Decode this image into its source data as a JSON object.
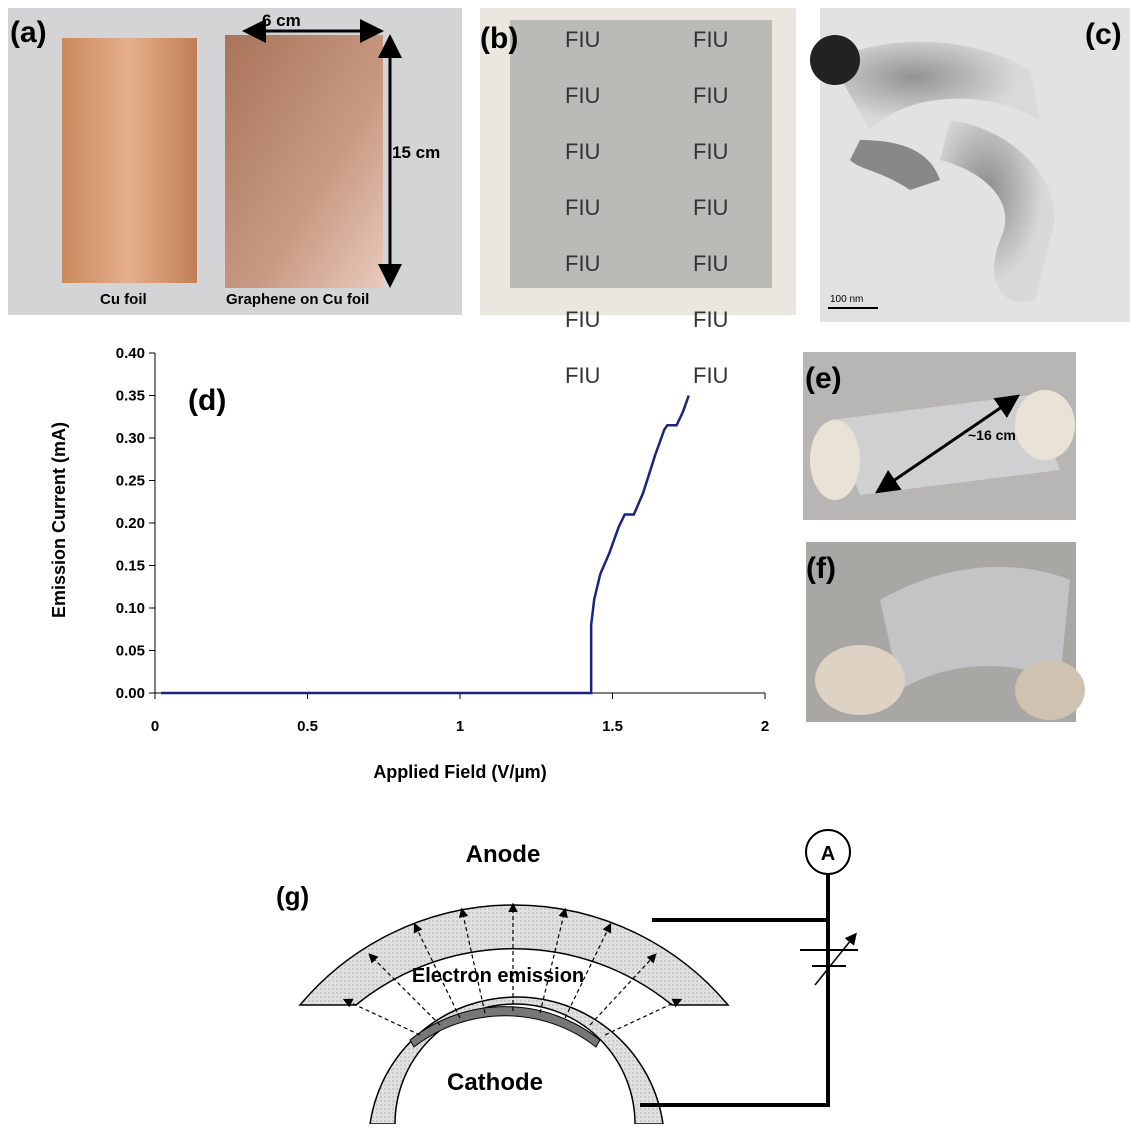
{
  "panel_a": {
    "label": "(a)",
    "width_label": "6 cm",
    "height_label": "15 cm",
    "left_caption": "Cu foil",
    "right_caption": "Graphene on Cu foil"
  },
  "panel_b": {
    "label": "(b)",
    "watermarks": [
      "FIU",
      "FIU",
      "FIU",
      "FIU",
      "FIU",
      "FIU",
      "FIU",
      "FIU",
      "FIU",
      "FIU",
      "FIU",
      "FIU",
      "FIU",
      "FIU"
    ]
  },
  "panel_c": {
    "label": "(c)",
    "scale_bar": "100 nm"
  },
  "panel_e": {
    "label": "(e)",
    "length_label": "~16 cm"
  },
  "panel_f": {
    "label": "(f)"
  },
  "panel_g": {
    "label": "(g)",
    "anode": "Anode",
    "emission": "Electron emission",
    "cathode": "Cathode",
    "meter": "A"
  },
  "chart_data": {
    "type": "line",
    "annotation": "(d)",
    "x_label": "Applied Field (V/µm)",
    "y_label": "Emission Current (mA)",
    "x": [
      0.02,
      0.5,
      1.0,
      1.43,
      1.43,
      1.44,
      1.46,
      1.49,
      1.52,
      1.54,
      1.57,
      1.6,
      1.64,
      1.67,
      1.68,
      1.71,
      1.73,
      1.75
    ],
    "series": [
      {
        "color": "#1a237e",
        "values": [
          0,
          0,
          0,
          0,
          0.08,
          0.11,
          0.14,
          0.165,
          0.195,
          0.21,
          0.21,
          0.235,
          0.28,
          0.31,
          0.315,
          0.315,
          0.33,
          0.35
        ]
      }
    ],
    "xlim": [
      0,
      2
    ],
    "xticks": [
      0,
      0.5,
      1,
      1.5,
      2
    ],
    "ylim": [
      0,
      0.4
    ],
    "yticks": [
      {
        "value": 0,
        "label": "0.00"
      },
      0.05,
      {
        "value": 0.1,
        "label": "0.10"
      },
      0.15,
      {
        "value": 0.2,
        "label": "0.20"
      },
      0.25,
      {
        "value": 0.3,
        "label": "0.30"
      },
      0.35,
      {
        "value": 0.4,
        "label": "0.40"
      }
    ]
  }
}
